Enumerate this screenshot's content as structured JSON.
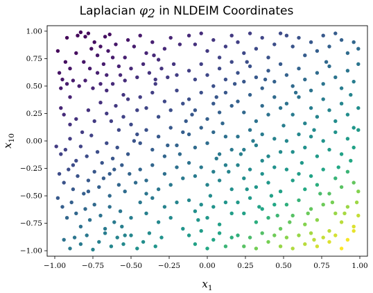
{
  "chart_data": {
    "type": "scatter",
    "title_prefix": "Laplacian ",
    "title_symbol": "φ",
    "title_symbol_sub": "2",
    "title_suffix": " in NLDEIM Coordinates",
    "xlabel_base": "x",
    "xlabel_sub": "1",
    "ylabel_base": "x",
    "ylabel_sub": "10",
    "xlim": [
      -1.05,
      1.05
    ],
    "ylim": [
      -1.05,
      1.05
    ],
    "xticks": [
      -1.0,
      -0.75,
      -0.5,
      -0.25,
      0.0,
      0.25,
      0.5,
      0.75,
      1.0
    ],
    "xtick_labels": [
      "−1.00",
      "−0.75",
      "−0.50",
      "−0.25",
      "0.00",
      "0.25",
      "0.50",
      "0.75",
      "1.00"
    ],
    "yticks": [
      -1.0,
      -0.75,
      -0.5,
      -0.25,
      0.0,
      0.25,
      0.5,
      0.75,
      1.0
    ],
    "ytick_labels": [
      "−1.00",
      "−0.75",
      "−0.50",
      "−0.25",
      "0.00",
      "0.25",
      "0.50",
      "0.75",
      "1.00"
    ],
    "grid": false,
    "legend": "none",
    "colormap": "viridis",
    "point_color": "colormap value rises from dark purple at top-left to yellow at bottom-right",
    "points": [
      [
        -0.98,
        0.82
      ],
      [
        -0.97,
        0.62
      ],
      [
        -0.95,
        0.56
      ],
      [
        -0.96,
        0.48
      ],
      [
        -0.93,
        0.72
      ],
      [
        -0.9,
        0.66
      ],
      [
        -0.88,
        0.55
      ],
      [
        -0.92,
        0.52
      ],
      [
        -0.85,
        0.96
      ],
      [
        -0.83,
        0.99
      ],
      [
        -0.8,
        0.95
      ],
      [
        -0.78,
        0.98
      ],
      [
        -0.74,
        0.9
      ],
      [
        -0.7,
        0.86
      ],
      [
        -0.67,
        0.95
      ],
      [
        -0.64,
        0.97
      ],
      [
        -0.86,
        0.8
      ],
      [
        -0.81,
        0.72
      ],
      [
        -0.77,
        0.66
      ],
      [
        -0.72,
        0.78
      ],
      [
        -0.68,
        0.7
      ],
      [
        -0.65,
        0.82
      ],
      [
        -0.62,
        0.76
      ],
      [
        -0.58,
        0.68
      ],
      [
        -0.84,
        0.5
      ],
      [
        -0.8,
        0.55
      ],
      [
        -0.75,
        0.48
      ],
      [
        -0.7,
        0.52
      ],
      [
        -0.66,
        0.46
      ],
      [
        -0.62,
        0.52
      ],
      [
        -0.57,
        0.6
      ],
      [
        -0.54,
        0.55
      ],
      [
        -0.96,
        0.3
      ],
      [
        -0.94,
        0.24
      ],
      [
        -0.9,
        0.15
      ],
      [
        -0.86,
        0.2
      ],
      [
        -0.82,
        0.08
      ],
      [
        -0.78,
        0.28
      ],
      [
        -0.74,
        0.18
      ],
      [
        -0.7,
        0.35
      ],
      [
        -0.66,
        0.25
      ],
      [
        -0.63,
        0.18
      ],
      [
        -0.6,
        0.32
      ],
      [
        -0.58,
        0.1
      ],
      [
        -0.55,
        0.22
      ],
      [
        -0.52,
        0.38
      ],
      [
        -0.5,
        0.15
      ],
      [
        -0.46,
        0.28
      ],
      [
        -0.99,
        -0.05
      ],
      [
        -0.96,
        -0.12
      ],
      [
        -0.93,
        -0.08
      ],
      [
        -0.9,
        0.02
      ],
      [
        -0.86,
        -0.18
      ],
      [
        -0.83,
        -0.05
      ],
      [
        -0.79,
        -0.14
      ],
      [
        -0.76,
        0.05
      ],
      [
        -0.72,
        -0.1
      ],
      [
        -0.69,
        -0.2
      ],
      [
        -0.66,
        -0.02
      ],
      [
        -0.62,
        -0.16
      ],
      [
        -0.59,
        -0.06
      ],
      [
        -0.56,
        -0.22
      ],
      [
        -0.52,
        -0.12
      ],
      [
        -0.48,
        0.0
      ],
      [
        -0.97,
        -0.3
      ],
      [
        -0.94,
        -0.38
      ],
      [
        -0.91,
        -0.26
      ],
      [
        -0.88,
        -0.44
      ],
      [
        -0.85,
        -0.32
      ],
      [
        -0.81,
        -0.48
      ],
      [
        -0.78,
        -0.36
      ],
      [
        -0.74,
        -0.28
      ],
      [
        -0.71,
        -0.42
      ],
      [
        -0.68,
        -0.34
      ],
      [
        -0.64,
        -0.5
      ],
      [
        -0.61,
        -0.26
      ],
      [
        -0.58,
        -0.4
      ],
      [
        -0.54,
        -0.46
      ],
      [
        -0.51,
        -0.3
      ],
      [
        -0.47,
        -0.38
      ],
      [
        -0.98,
        -0.52
      ],
      [
        -0.95,
        -0.6
      ],
      [
        -0.92,
        -0.7
      ],
      [
        -0.89,
        -0.56
      ],
      [
        -0.86,
        -0.66
      ],
      [
        -0.83,
        -0.78
      ],
      [
        -0.8,
        -0.62
      ],
      [
        -0.77,
        -0.72
      ],
      [
        -0.74,
        -0.58
      ],
      [
        -0.7,
        -0.68
      ],
      [
        -0.67,
        -0.8
      ],
      [
        -0.64,
        -0.6
      ],
      [
        -0.61,
        -0.74
      ],
      [
        -0.57,
        -0.64
      ],
      [
        -0.54,
        -0.86
      ],
      [
        -0.5,
        -0.7
      ],
      [
        -0.94,
        -0.9
      ],
      [
        -0.9,
        -0.98
      ],
      [
        -0.87,
        -0.88
      ],
      [
        -0.83,
        -0.94
      ],
      [
        -0.79,
        -0.86
      ],
      [
        -0.75,
        -0.99
      ],
      [
        -0.71,
        -0.92
      ],
      [
        -0.67,
        -0.84
      ],
      [
        -0.63,
        -0.96
      ],
      [
        -0.59,
        -0.88
      ],
      [
        -0.55,
        -0.94
      ],
      [
        -0.5,
        -0.86
      ],
      [
        -0.46,
        -0.98
      ],
      [
        -0.42,
        -0.92
      ],
      [
        -0.38,
        -0.84
      ],
      [
        -0.34,
        -0.96
      ],
      [
        -0.52,
        0.92
      ],
      [
        -0.48,
        0.86
      ],
      [
        -0.44,
        0.96
      ],
      [
        -0.4,
        0.8
      ],
      [
        -0.36,
        0.9
      ],
      [
        -0.32,
        0.74
      ],
      [
        -0.28,
        0.84
      ],
      [
        -0.24,
        0.94
      ],
      [
        -0.5,
        0.66
      ],
      [
        -0.46,
        0.58
      ],
      [
        -0.42,
        0.7
      ],
      [
        -0.38,
        0.62
      ],
      [
        -0.34,
        0.52
      ],
      [
        -0.3,
        0.66
      ],
      [
        -0.26,
        0.58
      ],
      [
        -0.22,
        0.7
      ],
      [
        -0.44,
        0.4
      ],
      [
        -0.4,
        0.3
      ],
      [
        -0.36,
        0.44
      ],
      [
        -0.32,
        0.22
      ],
      [
        -0.28,
        0.36
      ],
      [
        -0.24,
        0.28
      ],
      [
        -0.2,
        0.46
      ],
      [
        -0.16,
        0.34
      ],
      [
        -0.44,
        -0.02
      ],
      [
        -0.4,
        0.1
      ],
      [
        -0.36,
        -0.08
      ],
      [
        -0.32,
        0.04
      ],
      [
        -0.28,
        -0.14
      ],
      [
        -0.24,
        0.12
      ],
      [
        -0.2,
        -0.04
      ],
      [
        -0.16,
        0.08
      ],
      [
        -0.44,
        -0.26
      ],
      [
        -0.4,
        -0.36
      ],
      [
        -0.36,
        -0.22
      ],
      [
        -0.32,
        -0.44
      ],
      [
        -0.28,
        -0.3
      ],
      [
        -0.24,
        -0.4
      ],
      [
        -0.2,
        -0.24
      ],
      [
        -0.16,
        -0.34
      ],
      [
        -0.44,
        -0.56
      ],
      [
        -0.4,
        -0.66
      ],
      [
        -0.36,
        -0.52
      ],
      [
        -0.32,
        -0.74
      ],
      [
        -0.28,
        -0.6
      ],
      [
        -0.24,
        -0.7
      ],
      [
        -0.2,
        -0.56
      ],
      [
        -0.16,
        -0.8
      ],
      [
        -0.12,
        0.96
      ],
      [
        -0.08,
        0.88
      ],
      [
        -0.04,
        0.98
      ],
      [
        0.0,
        0.82
      ],
      [
        0.04,
        0.92
      ],
      [
        0.08,
        0.76
      ],
      [
        0.12,
        0.86
      ],
      [
        0.16,
        0.96
      ],
      [
        -0.12,
        0.64
      ],
      [
        -0.08,
        0.56
      ],
      [
        -0.04,
        0.7
      ],
      [
        0.0,
        0.6
      ],
      [
        0.04,
        0.5
      ],
      [
        0.08,
        0.66
      ],
      [
        0.12,
        0.56
      ],
      [
        0.16,
        0.72
      ],
      [
        -0.12,
        0.38
      ],
      [
        -0.08,
        0.28
      ],
      [
        -0.04,
        0.44
      ],
      [
        0.0,
        0.2
      ],
      [
        0.04,
        0.34
      ],
      [
        0.08,
        0.26
      ],
      [
        0.12,
        0.44
      ],
      [
        0.16,
        0.32
      ],
      [
        -0.12,
        0.06
      ],
      [
        -0.08,
        -0.06
      ],
      [
        -0.04,
        0.12
      ],
      [
        0.0,
        -0.02
      ],
      [
        0.04,
        0.08
      ],
      [
        0.08,
        -0.12
      ],
      [
        0.12,
        0.04
      ],
      [
        0.16,
        -0.08
      ],
      [
        -0.12,
        -0.2
      ],
      [
        -0.08,
        -0.32
      ],
      [
        -0.04,
        -0.24
      ],
      [
        0.0,
        -0.4
      ],
      [
        0.04,
        -0.28
      ],
      [
        0.08,
        -0.36
      ],
      [
        0.12,
        -0.22
      ],
      [
        0.16,
        -0.44
      ],
      [
        -0.12,
        -0.54
      ],
      [
        -0.08,
        -0.64
      ],
      [
        -0.04,
        -0.58
      ],
      [
        0.0,
        -0.7
      ],
      [
        0.04,
        -0.6
      ],
      [
        0.08,
        -0.76
      ],
      [
        0.12,
        -0.56
      ],
      [
        0.16,
        -0.66
      ],
      [
        -0.12,
        -0.86
      ],
      [
        -0.08,
        -0.94
      ],
      [
        -0.04,
        -0.82
      ],
      [
        0.0,
        -0.98
      ],
      [
        0.04,
        -0.9
      ],
      [
        0.08,
        -0.84
      ],
      [
        0.12,
        -0.96
      ],
      [
        0.16,
        -0.88
      ],
      [
        0.2,
        0.9
      ],
      [
        0.24,
        0.8
      ],
      [
        0.28,
        0.98
      ],
      [
        0.32,
        0.84
      ],
      [
        0.36,
        0.94
      ],
      [
        0.4,
        0.76
      ],
      [
        0.44,
        0.88
      ],
      [
        0.48,
        0.98
      ],
      [
        0.2,
        0.62
      ],
      [
        0.24,
        0.54
      ],
      [
        0.28,
        0.68
      ],
      [
        0.32,
        0.58
      ],
      [
        0.36,
        0.48
      ],
      [
        0.4,
        0.64
      ],
      [
        0.44,
        0.54
      ],
      [
        0.48,
        0.7
      ],
      [
        0.2,
        0.36
      ],
      [
        0.24,
        0.26
      ],
      [
        0.28,
        0.42
      ],
      [
        0.32,
        0.18
      ],
      [
        0.36,
        0.32
      ],
      [
        0.4,
        0.24
      ],
      [
        0.44,
        0.4
      ],
      [
        0.48,
        0.3
      ],
      [
        0.2,
        0.04
      ],
      [
        0.24,
        -0.08
      ],
      [
        0.28,
        0.1
      ],
      [
        0.32,
        -0.04
      ],
      [
        0.36,
        0.06
      ],
      [
        0.4,
        -0.14
      ],
      [
        0.44,
        0.02
      ],
      [
        0.48,
        -0.1
      ],
      [
        0.2,
        -0.22
      ],
      [
        0.24,
        -0.34
      ],
      [
        0.28,
        -0.26
      ],
      [
        0.32,
        -0.42
      ],
      [
        0.36,
        -0.3
      ],
      [
        0.4,
        -0.38
      ],
      [
        0.44,
        -0.24
      ],
      [
        0.48,
        -0.46
      ],
      [
        0.2,
        -0.56
      ],
      [
        0.24,
        -0.66
      ],
      [
        0.28,
        -0.52
      ],
      [
        0.32,
        -0.74
      ],
      [
        0.36,
        -0.62
      ],
      [
        0.4,
        -0.7
      ],
      [
        0.44,
        -0.58
      ],
      [
        0.48,
        -0.8
      ],
      [
        0.2,
        -0.86
      ],
      [
        0.24,
        -0.96
      ],
      [
        0.28,
        -0.88
      ],
      [
        0.32,
        -0.98
      ],
      [
        0.36,
        -0.84
      ],
      [
        0.4,
        -0.92
      ],
      [
        0.44,
        -0.86
      ],
      [
        0.48,
        -0.96
      ],
      [
        0.52,
        0.96
      ],
      [
        0.56,
        0.86
      ],
      [
        0.6,
        0.94
      ],
      [
        0.64,
        0.78
      ],
      [
        0.68,
        0.9
      ],
      [
        0.72,
        0.82
      ],
      [
        0.76,
        0.96
      ],
      [
        0.8,
        0.86
      ],
      [
        0.84,
        0.98
      ],
      [
        0.88,
        0.92
      ],
      [
        0.92,
        0.8
      ],
      [
        0.96,
        0.9
      ],
      [
        0.99,
        0.84
      ],
      [
        0.52,
        0.6
      ],
      [
        0.56,
        0.5
      ],
      [
        0.6,
        0.66
      ],
      [
        0.64,
        0.56
      ],
      [
        0.68,
        0.46
      ],
      [
        0.72,
        0.62
      ],
      [
        0.76,
        0.52
      ],
      [
        0.8,
        0.68
      ],
      [
        0.84,
        0.58
      ],
      [
        0.88,
        0.48
      ],
      [
        0.92,
        0.64
      ],
      [
        0.96,
        0.54
      ],
      [
        0.99,
        0.7
      ],
      [
        0.52,
        0.34
      ],
      [
        0.56,
        0.24
      ],
      [
        0.6,
        0.4
      ],
      [
        0.64,
        0.16
      ],
      [
        0.68,
        0.3
      ],
      [
        0.72,
        0.22
      ],
      [
        0.76,
        0.38
      ],
      [
        0.8,
        0.28
      ],
      [
        0.84,
        0.18
      ],
      [
        0.88,
        0.34
      ],
      [
        0.92,
        0.24
      ],
      [
        0.96,
        0.12
      ],
      [
        0.99,
        0.3
      ],
      [
        0.52,
        0.0
      ],
      [
        0.56,
        -0.1
      ],
      [
        0.6,
        0.06
      ],
      [
        0.64,
        -0.06
      ],
      [
        0.68,
        0.04
      ],
      [
        0.72,
        -0.14
      ],
      [
        0.76,
        0.0
      ],
      [
        0.8,
        -0.08
      ],
      [
        0.84,
        0.08
      ],
      [
        0.88,
        -0.12
      ],
      [
        0.92,
        0.02
      ],
      [
        0.96,
        -0.06
      ],
      [
        0.99,
        0.1
      ],
      [
        0.52,
        -0.26
      ],
      [
        0.56,
        -0.36
      ],
      [
        0.6,
        -0.3
      ],
      [
        0.64,
        -0.44
      ],
      [
        0.68,
        -0.32
      ],
      [
        0.72,
        -0.4
      ],
      [
        0.76,
        -0.26
      ],
      [
        0.8,
        -0.48
      ],
      [
        0.84,
        -0.34
      ],
      [
        0.88,
        -0.42
      ],
      [
        0.92,
        -0.28
      ],
      [
        0.96,
        -0.38
      ],
      [
        0.99,
        -0.46
      ],
      [
        0.52,
        -0.58
      ],
      [
        0.56,
        -0.68
      ],
      [
        0.6,
        -0.54
      ],
      [
        0.64,
        -0.76
      ],
      [
        0.68,
        -0.62
      ],
      [
        0.72,
        -0.72
      ],
      [
        0.76,
        -0.58
      ],
      [
        0.8,
        -0.82
      ],
      [
        0.84,
        -0.66
      ],
      [
        0.88,
        -0.74
      ],
      [
        0.92,
        -0.6
      ],
      [
        0.96,
        -0.78
      ],
      [
        0.99,
        -0.68
      ],
      [
        0.52,
        -0.88
      ],
      [
        0.56,
        -0.98
      ],
      [
        0.6,
        -0.86
      ],
      [
        0.64,
        -0.94
      ],
      [
        0.68,
        -0.84
      ],
      [
        0.72,
        -0.96
      ],
      [
        0.76,
        -0.88
      ],
      [
        0.8,
        -0.92
      ],
      [
        0.84,
        -0.86
      ],
      [
        0.88,
        -0.98
      ],
      [
        0.92,
        -0.9
      ],
      [
        0.96,
        -0.82
      ],
      [
        -0.9,
        0.4
      ],
      [
        -0.72,
        0.62
      ],
      [
        -0.6,
        0.88
      ],
      [
        -0.55,
        0.42
      ],
      [
        -0.35,
        0.78
      ],
      [
        -0.18,
        0.88
      ],
      [
        -0.2,
        0.6
      ],
      [
        -0.1,
        0.24
      ],
      [
        0.06,
        0.4
      ],
      [
        0.26,
        0.72
      ],
      [
        0.38,
        0.56
      ],
      [
        0.58,
        0.44
      ],
      [
        0.78,
        0.72
      ],
      [
        0.94,
        0.42
      ],
      [
        -0.88,
        -0.22
      ],
      [
        -0.64,
        -0.3
      ],
      [
        -0.4,
        -0.48
      ],
      [
        -0.18,
        -0.12
      ],
      [
        0.02,
        -0.5
      ],
      [
        0.22,
        -0.12
      ],
      [
        0.42,
        -0.5
      ],
      [
        0.62,
        -0.2
      ],
      [
        0.82,
        -0.56
      ],
      [
        0.94,
        -0.18
      ],
      [
        -0.78,
        -0.46
      ],
      [
        -0.56,
        -0.78
      ],
      [
        -0.3,
        -0.88
      ],
      [
        -0.06,
        -0.72
      ],
      [
        0.14,
        -0.28
      ],
      [
        0.34,
        -0.6
      ],
      [
        0.54,
        -0.74
      ],
      [
        0.74,
        -0.48
      ],
      [
        0.9,
        -0.66
      ],
      [
        0.7,
        -0.9
      ],
      [
        0.46,
        -0.68
      ],
      [
        0.26,
        -0.44
      ],
      [
        0.06,
        -0.16
      ],
      [
        -0.14,
        0.18
      ],
      [
        -0.34,
        0.56
      ],
      [
        -0.54,
        0.76
      ],
      [
        -0.76,
        0.84
      ],
      [
        -0.92,
        0.94
      ],
      [
        -0.66,
        0.6
      ],
      [
        -0.46,
        0.06
      ],
      [
        -0.26,
        -0.04
      ],
      [
        0.1,
        0.16
      ],
      [
        0.3,
        0.0
      ],
      [
        0.5,
        0.14
      ],
      [
        0.7,
        0.1
      ],
      [
        0.86,
        -0.24
      ],
      [
        0.98,
        -0.56
      ],
      [
        0.66,
        -0.66
      ],
      [
        0.36,
        -0.18
      ],
      [
        0.18,
        0.52
      ]
    ]
  }
}
